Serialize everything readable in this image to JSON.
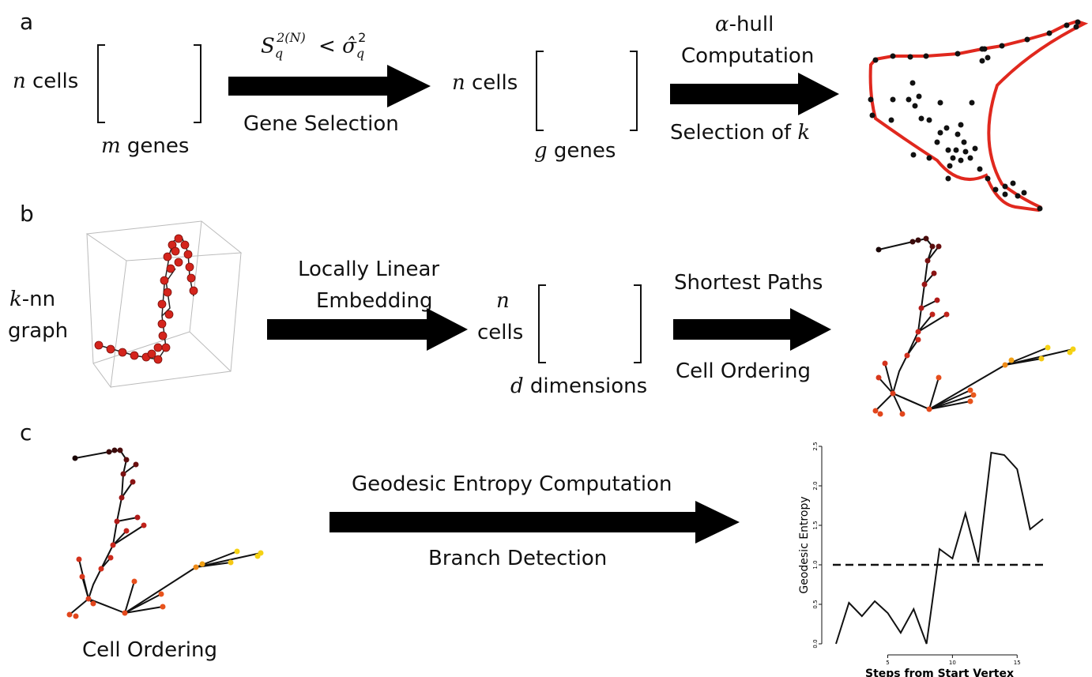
{
  "panels": {
    "a": "a",
    "b": "b",
    "c": "c"
  },
  "row_a": {
    "matrix1_rows": "cells",
    "matrix1_rows_var": "n",
    "matrix1_cols": "genes",
    "matrix1_cols_var": "m",
    "arrow1_formula": "S_q^{2(N)} < σ̂_q^2",
    "arrow1_label": "Gene Selection",
    "matrix2_rows": "cells",
    "matrix2_rows_var": "n",
    "matrix2_cols": "genes",
    "matrix2_cols_var": "g",
    "arrow2_var": "α",
    "arrow2_top_1": "-hull",
    "arrow2_top_2": "Computation",
    "arrow2_bottom": "Selection of",
    "arrow2_bottom_var": "k"
  },
  "row_b": {
    "graph_var": "k",
    "graph_label_1": "-nn",
    "graph_label_2": "graph",
    "arrow1_line1": "Locally Linear",
    "arrow1_line2": "Embedding",
    "matrix_rows_var": "n",
    "matrix_rows": "cells",
    "matrix_cols_var": "d",
    "matrix_cols": "dimensions",
    "arrow2_top": "Shortest Paths",
    "arrow2_bottom": "Cell Ordering"
  },
  "row_c": {
    "tree_caption": "Cell Ordering",
    "arrow_top": "Geodesic Entropy Computation",
    "arrow_bottom": "Branch Detection"
  },
  "chart_data": {
    "type": "line",
    "xlabel": "Steps from Start Vertex",
    "ylabel": "Geodesic Entropy",
    "x": [
      1,
      2,
      3,
      4,
      5,
      6,
      7,
      8,
      9,
      10,
      11,
      12,
      13,
      14,
      15,
      16,
      17
    ],
    "y": [
      0.0,
      0.52,
      0.35,
      0.54,
      0.39,
      0.14,
      0.44,
      0.0,
      1.2,
      1.08,
      1.65,
      1.03,
      2.42,
      2.39,
      2.21,
      1.45,
      1.58
    ],
    "xticks": [
      "5",
      "10",
      "15"
    ],
    "xtick_values": [
      5,
      10,
      15
    ],
    "yticks": [
      "0.0",
      "0.5",
      "1.0",
      "1.5",
      "2.0",
      "2.5"
    ],
    "ytick_values": [
      0,
      0.5,
      1.0,
      1.5,
      2.0,
      2.5
    ],
    "xlim": [
      1,
      17
    ],
    "ylim": [
      0,
      2.5
    ],
    "threshold": 1.0,
    "threshold_style": "dashed"
  },
  "colors": {
    "hull": "#e0281e",
    "points": "#111111",
    "tree_dark": "#3a0a0a",
    "tree_red": "#c0231b",
    "tree_orange": "#e8531c",
    "tree_yellow": "#f5d214",
    "arrow": "#000000"
  }
}
